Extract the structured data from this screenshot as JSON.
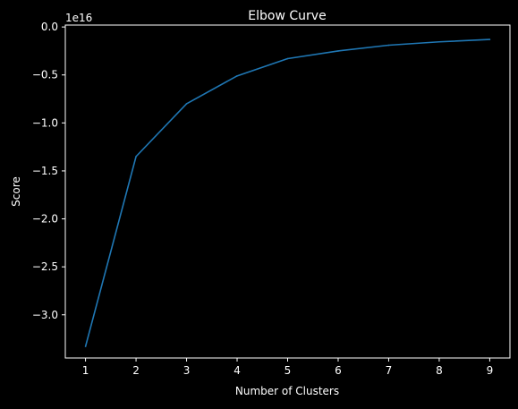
{
  "chart_data": {
    "type": "line",
    "title": "Elbow Curve",
    "xlabel": "Number of Clusters",
    "ylabel": "Score",
    "y_offset_label": "1e16",
    "x": [
      1,
      2,
      3,
      4,
      5,
      6,
      7,
      8,
      9
    ],
    "series": [
      {
        "values": [
          -3.33,
          -1.35,
          -0.8,
          -0.51,
          -0.33,
          -0.25,
          -0.19,
          -0.155,
          -0.13
        ]
      }
    ],
    "xlim": [
      0.6,
      9.4
    ],
    "ylim": [
      -3.45,
      0.02
    ],
    "x_ticks": [
      1,
      2,
      3,
      4,
      5,
      6,
      7,
      8,
      9
    ],
    "y_ticks": [
      0.0,
      -0.5,
      -1.0,
      -1.5,
      -2.0,
      -2.5,
      -3.0
    ],
    "y_tick_labels": [
      "0.0",
      "−0.5",
      "−1.0",
      "−1.5",
      "−2.0",
      "−2.5",
      "−3.0"
    ],
    "grid": false,
    "legend": "none",
    "colors": {
      "background": "#000000",
      "axes": "#ffffff",
      "text": "#ffffff",
      "line": "#1f77b4"
    }
  }
}
